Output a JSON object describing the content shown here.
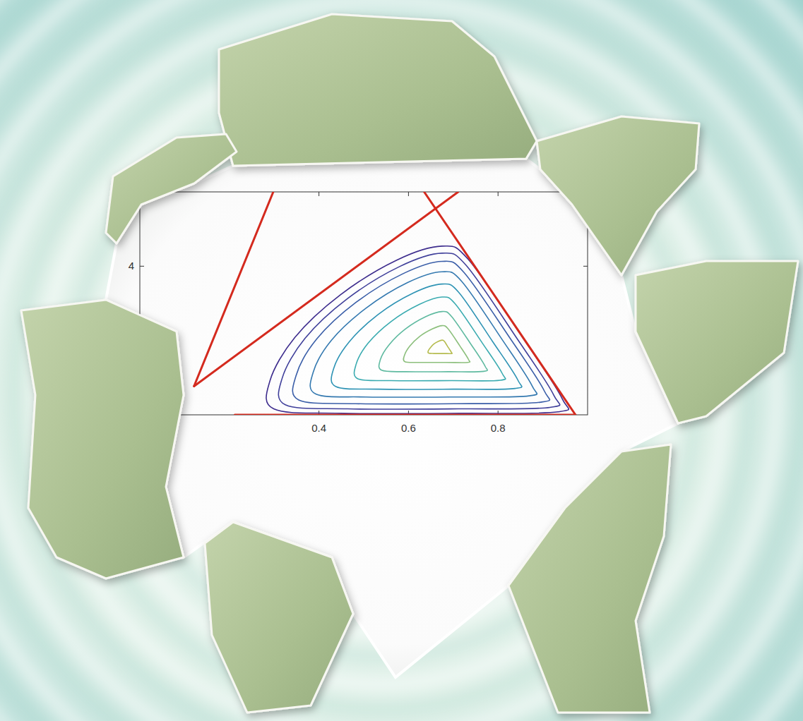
{
  "chart_data": {
    "type": "contour",
    "xlim": [
      0,
      1
    ],
    "ylim": [
      0,
      6
    ],
    "xticks": [
      0.4,
      0.6,
      0.8
    ],
    "yticks": [
      4
    ],
    "lines": [
      {
        "color": "#d42a1e",
        "x": [
          0.212,
          0.973
        ],
        "y": [
          0,
          0
        ]
      },
      {
        "color": "#d42a1e",
        "x": [
          0.635,
          0.973
        ],
        "y": [
          6,
          0
        ]
      },
      {
        "color": "#d42a1e",
        "x": [
          0.711,
          0.121
        ],
        "y": [
          6,
          0.77
        ]
      },
      {
        "color": "#d42a1e",
        "x": [
          0.298,
          0.121
        ],
        "y": [
          6,
          0.77
        ]
      }
    ],
    "series": [
      {
        "color": "#3d2c8d",
        "x": [
          0.675,
          0.573,
          0.448,
          0.346,
          0.291,
          0.299,
          0.448,
          0.714,
          0.934,
          0.943,
          0.855,
          0.733
        ],
        "y": [
          4.54,
          4.16,
          3.23,
          2.08,
          0.93,
          0.16,
          0.04,
          0.04,
          0.08,
          0.44,
          2.08,
          4.19
        ]
      },
      {
        "color": "#3f3f9a",
        "x": [
          0.675,
          0.58,
          0.464,
          0.369,
          0.318,
          0.325,
          0.464,
          0.711,
          0.916,
          0.924,
          0.842,
          0.729
        ],
        "y": [
          4.35,
          3.99,
          3.13,
          2.06,
          0.99,
          0.27,
          0.16,
          0.16,
          0.2,
          0.54,
          2.06,
          4.02
        ]
      },
      {
        "color": "#3a5ea8",
        "x": [
          0.675,
          0.588,
          0.482,
          0.395,
          0.349,
          0.355,
          0.482,
          0.708,
          0.895,
          0.903,
          0.828,
          0.724
        ],
        "y": [
          4.13,
          3.8,
          3.02,
          2.04,
          1.06,
          0.4,
          0.3,
          0.3,
          0.34,
          0.65,
          2.04,
          3.83
        ]
      },
      {
        "color": "#3479b0",
        "x": [
          0.675,
          0.598,
          0.505,
          0.428,
          0.387,
          0.393,
          0.505,
          0.704,
          0.869,
          0.876,
          0.81,
          0.719
        ],
        "y": [
          3.85,
          3.56,
          2.87,
          2.01,
          1.14,
          0.56,
          0.48,
          0.48,
          0.51,
          0.78,
          2.01,
          3.59
        ]
      },
      {
        "color": "#2e93b4",
        "x": [
          0.675,
          0.611,
          0.532,
          0.468,
          0.433,
          0.438,
          0.532,
          0.7,
          0.838,
          0.844,
          0.788,
          0.712
        ],
        "y": [
          3.52,
          3.28,
          2.7,
          1.97,
          1.25,
          0.76,
          0.69,
          0.69,
          0.71,
          0.94,
          1.97,
          3.3
        ]
      },
      {
        "color": "#3aabb0",
        "x": [
          0.675,
          0.624,
          0.561,
          0.51,
          0.483,
          0.487,
          0.561,
          0.695,
          0.805,
          0.809,
          0.765,
          0.704
        ],
        "y": [
          3.17,
          2.97,
          2.51,
          1.93,
          1.36,
          0.97,
          0.92,
          0.92,
          0.93,
          1.12,
          1.93,
          2.99
        ]
      },
      {
        "color": "#5fbaa0",
        "x": [
          0.675,
          0.638,
          0.593,
          0.557,
          0.537,
          0.54,
          0.593,
          0.689,
          0.768,
          0.771,
          0.74,
          0.696
        ],
        "y": [
          2.78,
          2.64,
          2.31,
          1.89,
          1.48,
          1.2,
          1.16,
          1.16,
          1.17,
          1.31,
          1.89,
          2.65
        ]
      },
      {
        "color": "#8cbf7c",
        "x": [
          0.675,
          0.653,
          0.625,
          0.603,
          0.591,
          0.592,
          0.625,
          0.684,
          0.732,
          0.734,
          0.715,
          0.688
        ],
        "y": [
          2.4,
          2.31,
          2.11,
          1.85,
          1.6,
          1.43,
          1.41,
          1.41,
          1.41,
          1.49,
          1.85,
          2.32
        ]
      },
      {
        "color": "#b5bb4e",
        "x": [
          0.675,
          0.667,
          0.657,
          0.649,
          0.644,
          0.645,
          0.657,
          0.678,
          0.696,
          0.696,
          0.689,
          0.68
        ],
        "y": [
          2.01,
          1.98,
          1.91,
          1.81,
          1.72,
          1.66,
          1.65,
          1.65,
          1.65,
          1.68,
          1.81,
          1.98
        ]
      }
    ]
  }
}
